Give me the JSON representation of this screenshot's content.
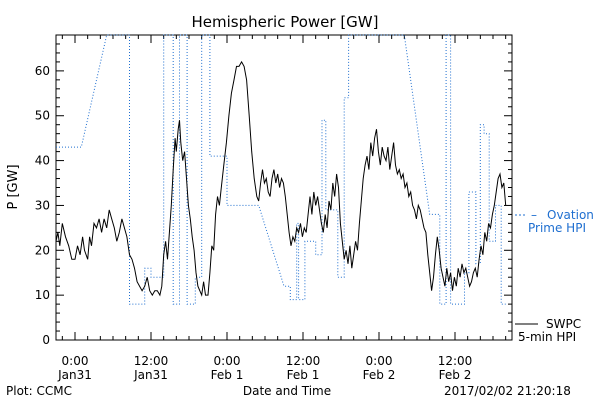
{
  "chart_data": {
    "type": "line",
    "title": "Hemispheric Power [GW]",
    "ylabel": "P [GW]",
    "xlabel": "Date and Time",
    "ylim": [
      0,
      68
    ],
    "y_ticks": [
      0,
      10,
      20,
      30,
      40,
      50,
      60
    ],
    "xlim_hours": [
      -3,
      69
    ],
    "x_ticks": [
      {
        "hour": 0,
        "line1": "0:00",
        "line2": "Jan31"
      },
      {
        "hour": 12,
        "line1": "12:00",
        "line2": "Jan31"
      },
      {
        "hour": 24,
        "line1": "0:00",
        "line2": "Feb 1"
      },
      {
        "hour": 36,
        "line1": "12:00",
        "line2": "Feb 1"
      },
      {
        "hour": 48,
        "line1": "0:00",
        "line2": "Feb 2"
      },
      {
        "hour": 60,
        "line1": "12:00",
        "line2": "Feb 2"
      }
    ],
    "x_minor_step_hours": 2,
    "y_minor_step": 2,
    "grid": false,
    "legend": {
      "ovation_line1": "Ovation",
      "ovation_line2": "Prime HPI",
      "swpc_line1": "SWPC",
      "swpc_line2": "5-min HPI"
    },
    "series": [
      {
        "name": "SWPC 5-min HPI",
        "color": "#000000",
        "style": "solid",
        "points": [
          [
            -3,
            22
          ],
          [
            -2.7,
            24
          ],
          [
            -2.4,
            21
          ],
          [
            -2,
            26
          ],
          [
            -1.5,
            23
          ],
          [
            -1,
            21
          ],
          [
            -0.5,
            18
          ],
          [
            0,
            18
          ],
          [
            0.4,
            21
          ],
          [
            0.8,
            19
          ],
          [
            1.2,
            23
          ],
          [
            1.5,
            20
          ],
          [
            2,
            18
          ],
          [
            2.3,
            23
          ],
          [
            2.6,
            21
          ],
          [
            3,
            26
          ],
          [
            3.4,
            25
          ],
          [
            3.8,
            27
          ],
          [
            4.2,
            24
          ],
          [
            4.6,
            27
          ],
          [
            5,
            25
          ],
          [
            5.4,
            29
          ],
          [
            5.8,
            27
          ],
          [
            6.2,
            25
          ],
          [
            6.6,
            22
          ],
          [
            7,
            24
          ],
          [
            7.4,
            27
          ],
          [
            7.8,
            25
          ],
          [
            8.2,
            23
          ],
          [
            8.6,
            19
          ],
          [
            9,
            18
          ],
          [
            9.4,
            16
          ],
          [
            9.8,
            13
          ],
          [
            10.2,
            12
          ],
          [
            10.6,
            11
          ],
          [
            11,
            12
          ],
          [
            11.4,
            14
          ],
          [
            11.8,
            11
          ],
          [
            12.2,
            10
          ],
          [
            12.6,
            11
          ],
          [
            13,
            11
          ],
          [
            13.4,
            10
          ],
          [
            13.7,
            12
          ],
          [
            14,
            19
          ],
          [
            14.3,
            22
          ],
          [
            14.6,
            18
          ],
          [
            14.9,
            24
          ],
          [
            15.2,
            30
          ],
          [
            15.5,
            38
          ],
          [
            15.8,
            45
          ],
          [
            16,
            42
          ],
          [
            16.3,
            47
          ],
          [
            16.5,
            49
          ],
          [
            16.7,
            44
          ],
          [
            17,
            40
          ],
          [
            17.3,
            42
          ],
          [
            17.6,
            36
          ],
          [
            17.9,
            30
          ],
          [
            18.2,
            27
          ],
          [
            18.5,
            23
          ],
          [
            18.8,
            20
          ],
          [
            19.1,
            15
          ],
          [
            19.4,
            12
          ],
          [
            19.7,
            11
          ],
          [
            20,
            10
          ],
          [
            20.3,
            13
          ],
          [
            20.6,
            10
          ],
          [
            21,
            10
          ],
          [
            21.3,
            15
          ],
          [
            21.6,
            21
          ],
          [
            21.9,
            20
          ],
          [
            22.2,
            28
          ],
          [
            22.5,
            32
          ],
          [
            22.8,
            30
          ],
          [
            23.1,
            34
          ],
          [
            23.5,
            39
          ],
          [
            23.9,
            44
          ],
          [
            24.3,
            50
          ],
          [
            24.7,
            55
          ],
          [
            25.1,
            58
          ],
          [
            25.5,
            61
          ],
          [
            25.9,
            61
          ],
          [
            26.3,
            62
          ],
          [
            26.7,
            61
          ],
          [
            27.1,
            58
          ],
          [
            27.5,
            50
          ],
          [
            27.9,
            42
          ],
          [
            28.3,
            36
          ],
          [
            28.7,
            32
          ],
          [
            29,
            31
          ],
          [
            29.3,
            35
          ],
          [
            29.6,
            38
          ],
          [
            29.9,
            35
          ],
          [
            30.2,
            36
          ],
          [
            30.5,
            33
          ],
          [
            30.8,
            32
          ],
          [
            31.1,
            36
          ],
          [
            31.4,
            38
          ],
          [
            31.7,
            35
          ],
          [
            32,
            37
          ],
          [
            32.3,
            34
          ],
          [
            32.6,
            36
          ],
          [
            32.9,
            35
          ],
          [
            33.2,
            32
          ],
          [
            33.5,
            28
          ],
          [
            33.8,
            24
          ],
          [
            34.1,
            21
          ],
          [
            34.4,
            23
          ],
          [
            34.7,
            22
          ],
          [
            35,
            25
          ],
          [
            35.3,
            24
          ],
          [
            35.6,
            26
          ],
          [
            35.9,
            23
          ],
          [
            36.2,
            25
          ],
          [
            36.5,
            24
          ],
          [
            36.8,
            28
          ],
          [
            37.1,
            32
          ],
          [
            37.4,
            28
          ],
          [
            37.7,
            33
          ],
          [
            38,
            30
          ],
          [
            38.3,
            32
          ],
          [
            38.6,
            29
          ],
          [
            38.9,
            26
          ],
          [
            39.2,
            24
          ],
          [
            39.5,
            28
          ],
          [
            39.8,
            25
          ],
          [
            40.1,
            31
          ],
          [
            40.4,
            29
          ],
          [
            40.7,
            35
          ],
          [
            41,
            32
          ],
          [
            41.3,
            37
          ],
          [
            41.6,
            34
          ],
          [
            41.9,
            26
          ],
          [
            42.2,
            22
          ],
          [
            42.5,
            18
          ],
          [
            42.8,
            20
          ],
          [
            43.1,
            17
          ],
          [
            43.4,
            21
          ],
          [
            43.7,
            16
          ],
          [
            44,
            19
          ],
          [
            44.3,
            22
          ],
          [
            44.6,
            20
          ],
          [
            44.9,
            26
          ],
          [
            45.2,
            31
          ],
          [
            45.5,
            36
          ],
          [
            45.8,
            39
          ],
          [
            46.1,
            41
          ],
          [
            46.4,
            38
          ],
          [
            46.7,
            44
          ],
          [
            47,
            41
          ],
          [
            47.3,
            45
          ],
          [
            47.6,
            47
          ],
          [
            47.9,
            42
          ],
          [
            48.2,
            39
          ],
          [
            48.5,
            43
          ],
          [
            48.8,
            41
          ],
          [
            49.1,
            40
          ],
          [
            49.4,
            43
          ],
          [
            49.7,
            38
          ],
          [
            50,
            41
          ],
          [
            50.3,
            44
          ],
          [
            50.6,
            39
          ],
          [
            50.9,
            37
          ],
          [
            51.2,
            38
          ],
          [
            51.5,
            36
          ],
          [
            51.8,
            37
          ],
          [
            52.1,
            34
          ],
          [
            52.4,
            35
          ],
          [
            52.7,
            32
          ],
          [
            53,
            33
          ],
          [
            53.3,
            30
          ],
          [
            53.6,
            29
          ],
          [
            53.9,
            27
          ],
          [
            54.2,
            30
          ],
          [
            54.5,
            29
          ],
          [
            54.8,
            27
          ],
          [
            55.1,
            25
          ],
          [
            55.4,
            24
          ],
          [
            55.7,
            19
          ],
          [
            56,
            15
          ],
          [
            56.3,
            11
          ],
          [
            56.6,
            14
          ],
          [
            56.9,
            19
          ],
          [
            57.2,
            23
          ],
          [
            57.5,
            20
          ],
          [
            57.8,
            16
          ],
          [
            58.1,
            14
          ],
          [
            58.4,
            12
          ],
          [
            58.7,
            16
          ],
          [
            59,
            13
          ],
          [
            59.3,
            15
          ],
          [
            59.6,
            11
          ],
          [
            59.9,
            14
          ],
          [
            60.2,
            12
          ],
          [
            60.5,
            16
          ],
          [
            60.8,
            14
          ],
          [
            61.1,
            17
          ],
          [
            61.4,
            15
          ],
          [
            61.7,
            16
          ],
          [
            62,
            14
          ],
          [
            62.3,
            12
          ],
          [
            62.6,
            13
          ],
          [
            62.9,
            15
          ],
          [
            63.2,
            16
          ],
          [
            63.5,
            14
          ],
          [
            63.8,
            18
          ],
          [
            64.1,
            21
          ],
          [
            64.4,
            19
          ],
          [
            64.7,
            24
          ],
          [
            65,
            22
          ],
          [
            65.3,
            26
          ],
          [
            65.6,
            25
          ],
          [
            65.9,
            28
          ],
          [
            66.2,
            30
          ],
          [
            66.5,
            33
          ],
          [
            66.8,
            36
          ],
          [
            67.1,
            37
          ],
          [
            67.4,
            34
          ],
          [
            67.7,
            35
          ],
          [
            68,
            30
          ]
        ]
      },
      {
        "name": "Ovation Prime HPI",
        "color": "#1f6fd0",
        "style": "dotted",
        "points": [
          [
            -3,
            43
          ],
          [
            1,
            43
          ],
          [
            5,
            68
          ],
          [
            8.6,
            68
          ],
          [
            8.6,
            8
          ],
          [
            11,
            8
          ],
          [
            11,
            16
          ],
          [
            12,
            16
          ],
          [
            12,
            14
          ],
          [
            14,
            14
          ],
          [
            14,
            68
          ],
          [
            15.5,
            68
          ],
          [
            15.5,
            8
          ],
          [
            16.5,
            8
          ],
          [
            16.5,
            68
          ],
          [
            17.7,
            68
          ],
          [
            17.7,
            8
          ],
          [
            19,
            8
          ],
          [
            19,
            14
          ],
          [
            20,
            14
          ],
          [
            20,
            68
          ],
          [
            21.3,
            68
          ],
          [
            21.3,
            41
          ],
          [
            24,
            41
          ],
          [
            24,
            30
          ],
          [
            29,
            30
          ],
          [
            33,
            12
          ],
          [
            34,
            12
          ],
          [
            34,
            9
          ],
          [
            35,
            9
          ],
          [
            35,
            26
          ],
          [
            35.3,
            26
          ],
          [
            35.3,
            9
          ],
          [
            36.3,
            9
          ],
          [
            36.3,
            22
          ],
          [
            38,
            22
          ],
          [
            38,
            19
          ],
          [
            39,
            19
          ],
          [
            39,
            49
          ],
          [
            39.6,
            49
          ],
          [
            39.6,
            29
          ],
          [
            41.5,
            29
          ],
          [
            41.5,
            14
          ],
          [
            42.5,
            14
          ],
          [
            42.5,
            54
          ],
          [
            43.2,
            54
          ],
          [
            43.2,
            68
          ],
          [
            52,
            68
          ],
          [
            56,
            28
          ],
          [
            57.6,
            28
          ],
          [
            57.6,
            8
          ],
          [
            58.6,
            8
          ],
          [
            58.6,
            68
          ],
          [
            59.3,
            68
          ],
          [
            59.3,
            8
          ],
          [
            61.5,
            8
          ],
          [
            61.5,
            15
          ],
          [
            62.2,
            15
          ],
          [
            62.2,
            33
          ],
          [
            63.3,
            33
          ],
          [
            63.3,
            17
          ],
          [
            64,
            17
          ],
          [
            64,
            48
          ],
          [
            64.6,
            48
          ],
          [
            64.6,
            46
          ],
          [
            65.4,
            46
          ],
          [
            65.4,
            22
          ],
          [
            66.4,
            22
          ],
          [
            66.4,
            30
          ],
          [
            67.3,
            30
          ],
          [
            67.3,
            8
          ],
          [
            68,
            8
          ]
        ]
      }
    ]
  },
  "footer": {
    "plot_credit": "Plot: CCMC",
    "timestamp": "2017/02/02 21:20:18"
  }
}
